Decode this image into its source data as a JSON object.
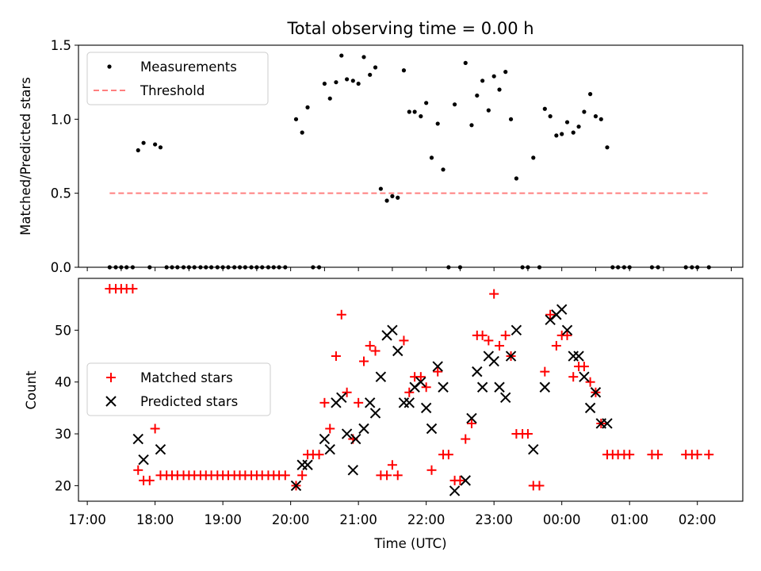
{
  "chart_data": [
    {
      "type": "scatter",
      "title": "Total observing time = 0.00 h",
      "ylabel": "Matched/Predicted stars",
      "xlabel": "",
      "ylim": [
        0,
        1.5
      ],
      "yticks": [
        "0.0",
        "0.5",
        "1.0",
        "1.5"
      ],
      "grid": false,
      "legend_position": "upper-left",
      "legend": [
        {
          "label": "Measurements",
          "marker": "dot",
          "color": "#000000"
        },
        {
          "label": "Threshold",
          "marker": "dashed-line",
          "color": "#ff7f7f"
        }
      ],
      "threshold": {
        "name": "Threshold",
        "value": 0.5,
        "x_start": 17.33,
        "x_end": 26.15
      },
      "series": [
        {
          "name": "Measurements",
          "color": "#000000",
          "x": [
            17.33,
            17.42,
            17.5,
            17.58,
            17.67,
            17.75,
            17.83,
            17.92,
            18.0,
            18.08,
            18.17,
            18.25,
            18.33,
            18.42,
            18.5,
            18.58,
            18.67,
            18.75,
            18.83,
            18.92,
            19.0,
            19.08,
            19.17,
            19.25,
            19.33,
            19.42,
            19.5,
            19.58,
            19.67,
            19.75,
            19.83,
            19.92,
            20.08,
            20.17,
            20.25,
            20.33,
            20.42,
            20.5,
            20.58,
            20.67,
            20.75,
            20.83,
            20.92,
            21.0,
            21.08,
            21.17,
            21.25,
            21.33,
            21.42,
            21.5,
            21.58,
            21.67,
            21.75,
            21.83,
            21.92,
            22.0,
            22.08,
            22.17,
            22.25,
            22.33,
            22.42,
            22.5,
            22.58,
            22.67,
            22.75,
            22.83,
            22.92,
            23.0,
            23.08,
            23.17,
            23.25,
            23.33,
            23.42,
            23.5,
            23.58,
            23.67,
            23.75,
            23.83,
            23.92,
            24.0,
            24.08,
            24.17,
            24.25,
            24.33,
            24.42,
            24.5,
            24.58,
            24.67,
            24.75,
            24.83,
            24.92,
            25.0,
            25.33,
            25.42,
            25.83,
            25.92,
            26.0,
            26.17
          ],
          "y": [
            0,
            0,
            0,
            0,
            0,
            0.79,
            0.84,
            0,
            0.83,
            0.81,
            0,
            0,
            0,
            0,
            0,
            0,
            0,
            0,
            0,
            0,
            0,
            0,
            0,
            0,
            0,
            0,
            0,
            0,
            0,
            0,
            0,
            0,
            1.0,
            0.91,
            1.08,
            0,
            0,
            1.24,
            1.14,
            1.25,
            1.43,
            1.27,
            1.26,
            1.24,
            1.42,
            1.3,
            1.35,
            0.53,
            0.45,
            0.48,
            0.47,
            1.33,
            1.05,
            1.05,
            1.02,
            1.11,
            0.74,
            0.97,
            0.66,
            0,
            1.1,
            0,
            1.38,
            0.96,
            1.16,
            1.26,
            1.06,
            1.29,
            1.2,
            1.32,
            1.0,
            0.6,
            0,
            0,
            0.74,
            0,
            1.07,
            1.02,
            0.89,
            0.9,
            0.98,
            0.91,
            0.95,
            1.05,
            1.17,
            1.02,
            1.0,
            0.81,
            0,
            0,
            0,
            0,
            0,
            0,
            0,
            0,
            0,
            0
          ]
        }
      ]
    },
    {
      "type": "scatter",
      "title": "",
      "ylabel": "Count",
      "xlabel": "Time (UTC)",
      "ylim": [
        17,
        60
      ],
      "yticks": [
        "20",
        "30",
        "40",
        "50"
      ],
      "xticks": [
        "17:00",
        "18:00",
        "19:00",
        "20:00",
        "21:00",
        "22:00",
        "23:00",
        "00:00",
        "01:00",
        "02:00"
      ],
      "xtick_hours": [
        17,
        18,
        19,
        20,
        21,
        22,
        23,
        24,
        25,
        26
      ],
      "xlim_hours": [
        16.87,
        26.67
      ],
      "grid": false,
      "legend_position": "center-left",
      "legend": [
        {
          "label": "Matched stars",
          "marker": "plus",
          "color": "#ff0000"
        },
        {
          "label": "Predicted stars",
          "marker": "x",
          "color": "#000000"
        }
      ],
      "series": [
        {
          "name": "Matched stars",
          "color": "#ff0000",
          "x": [
            17.33,
            17.42,
            17.5,
            17.58,
            17.67,
            17.75,
            17.83,
            17.92,
            18.0,
            18.08,
            18.17,
            18.25,
            18.33,
            18.42,
            18.5,
            18.58,
            18.67,
            18.75,
            18.83,
            18.92,
            19.0,
            19.08,
            19.17,
            19.25,
            19.33,
            19.42,
            19.5,
            19.58,
            19.67,
            19.75,
            19.83,
            19.92,
            20.08,
            20.17,
            20.25,
            20.33,
            20.42,
            20.5,
            20.58,
            20.67,
            20.75,
            20.83,
            20.92,
            21.0,
            21.08,
            21.17,
            21.25,
            21.33,
            21.42,
            21.5,
            21.58,
            21.67,
            21.75,
            21.83,
            21.92,
            22.0,
            22.08,
            22.17,
            22.25,
            22.33,
            22.42,
            22.5,
            22.58,
            22.67,
            22.75,
            22.83,
            22.92,
            23.0,
            23.08,
            23.17,
            23.25,
            23.33,
            23.42,
            23.5,
            23.58,
            23.67,
            23.75,
            23.83,
            23.92,
            24.0,
            24.08,
            24.17,
            24.25,
            24.33,
            24.42,
            24.5,
            24.58,
            24.67,
            24.75,
            24.83,
            24.92,
            25.0,
            25.33,
            25.42,
            25.83,
            25.92,
            26.0,
            26.17
          ],
          "y": [
            58,
            58,
            58,
            58,
            58,
            23,
            21,
            21,
            31,
            22,
            22,
            22,
            22,
            22,
            22,
            22,
            22,
            22,
            22,
            22,
            22,
            22,
            22,
            22,
            22,
            22,
            22,
            22,
            22,
            22,
            22,
            22,
            20,
            22,
            26,
            26,
            26,
            36,
            31,
            45,
            53,
            38,
            29,
            36,
            44,
            47,
            46,
            22,
            22,
            24,
            22,
            48,
            38,
            41,
            41,
            39,
            23,
            42,
            26,
            26,
            21,
            21,
            29,
            32,
            49,
            49,
            48,
            57,
            47,
            49,
            45,
            30,
            30,
            30,
            20,
            20,
            42,
            53,
            47,
            49,
            49,
            41,
            43,
            43,
            40,
            38,
            32,
            26,
            26,
            26,
            26,
            26,
            26,
            26,
            26,
            26,
            26,
            26
          ]
        },
        {
          "name": "Predicted stars",
          "color": "#000000",
          "x": [
            17.75,
            17.83,
            18.08,
            20.08,
            20.17,
            20.25,
            20.5,
            20.58,
            20.67,
            20.75,
            20.83,
            20.92,
            20.96,
            21.08,
            21.17,
            21.25,
            21.33,
            21.42,
            21.5,
            21.58,
            21.67,
            21.75,
            21.83,
            21.92,
            22.0,
            22.08,
            22.17,
            22.25,
            22.42,
            22.58,
            22.67,
            22.75,
            22.83,
            22.92,
            23.0,
            23.08,
            23.17,
            23.25,
            23.33,
            23.58,
            23.75,
            23.83,
            23.92,
            24.0,
            24.08,
            24.17,
            24.25,
            24.33,
            24.42,
            24.5,
            24.58,
            24.67
          ],
          "y": [
            29,
            25,
            27,
            20,
            24,
            24,
            29,
            27,
            36,
            37,
            30,
            23,
            29,
            31,
            36,
            34,
            41,
            49,
            50,
            46,
            36,
            36,
            39,
            40,
            35,
            31,
            43,
            39,
            19,
            21,
            33,
            42,
            39,
            45,
            44,
            39,
            37,
            45,
            50,
            27,
            39,
            52,
            53,
            54,
            50,
            45,
            45,
            41,
            35,
            38,
            32,
            32
          ]
        }
      ]
    }
  ]
}
